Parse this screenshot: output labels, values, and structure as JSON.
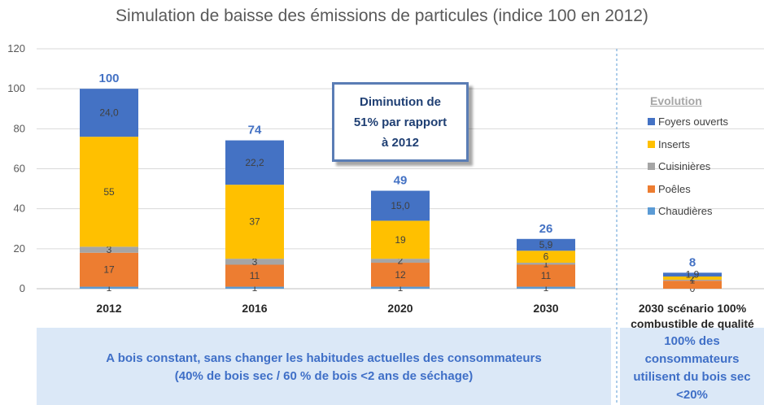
{
  "chart_data": {
    "type": "bar",
    "stacked": true,
    "title": "Simulation de baisse des émissions de particules (indice 100 en 2012)",
    "categories": [
      "2012",
      "2016",
      "2020",
      "2030",
      "2030 scénario 100%\ncombustible de qualité"
    ],
    "ylim": [
      0,
      120
    ],
    "yticks": [
      "0",
      "20",
      "40",
      "60",
      "80",
      "100",
      "120"
    ],
    "grid": true,
    "legend_position": "right",
    "legend_title": "Evolution",
    "legend_order": [
      "Foyers ouverts",
      "Inserts",
      "Cuisinières",
      "Poêles",
      "Chaudières"
    ],
    "series": [
      {
        "name": "Chaudières",
        "color": "#5b9bd5",
        "values": [
          1,
          1,
          1,
          1,
          0
        ],
        "labels": [
          "1",
          "1",
          "1",
          "1",
          "0"
        ]
      },
      {
        "name": "Poêles",
        "color": "#ed7d31",
        "values": [
          17,
          11,
          12,
          11,
          4
        ],
        "labels": [
          "17",
          "11",
          "12",
          "11",
          ""
        ]
      },
      {
        "name": "Cuisinières",
        "color": "#a5a5a5",
        "values": [
          3,
          3,
          2,
          1,
          0.5
        ],
        "labels": [
          "3",
          "3",
          "2",
          "1",
          "1"
        ]
      },
      {
        "name": "Inserts",
        "color": "#ffc000",
        "values": [
          55,
          37,
          19,
          6,
          1.6
        ],
        "labels": [
          "55",
          "37",
          "19",
          "6",
          "2"
        ]
      },
      {
        "name": "Foyers ouverts",
        "color": "#4472c4",
        "values": [
          24.0,
          22.2,
          15.0,
          5.9,
          1.9
        ],
        "labels": [
          "24,0",
          "22,2",
          "15,0",
          "5,9",
          "1,9"
        ]
      }
    ],
    "totals": [
      "100",
      "74",
      "49",
      "26",
      "8"
    ]
  },
  "callout": "Diminution de\n51%  par rapport\nà 2012",
  "footer": {
    "left": "A bois constant, sans changer les habitudes actuelles des consommateurs\n(40% de bois sec / 60 % de bois <2 ans de séchage)",
    "right": "100% des\nconsommateurs\nutilisent du bois sec\n<20%"
  }
}
